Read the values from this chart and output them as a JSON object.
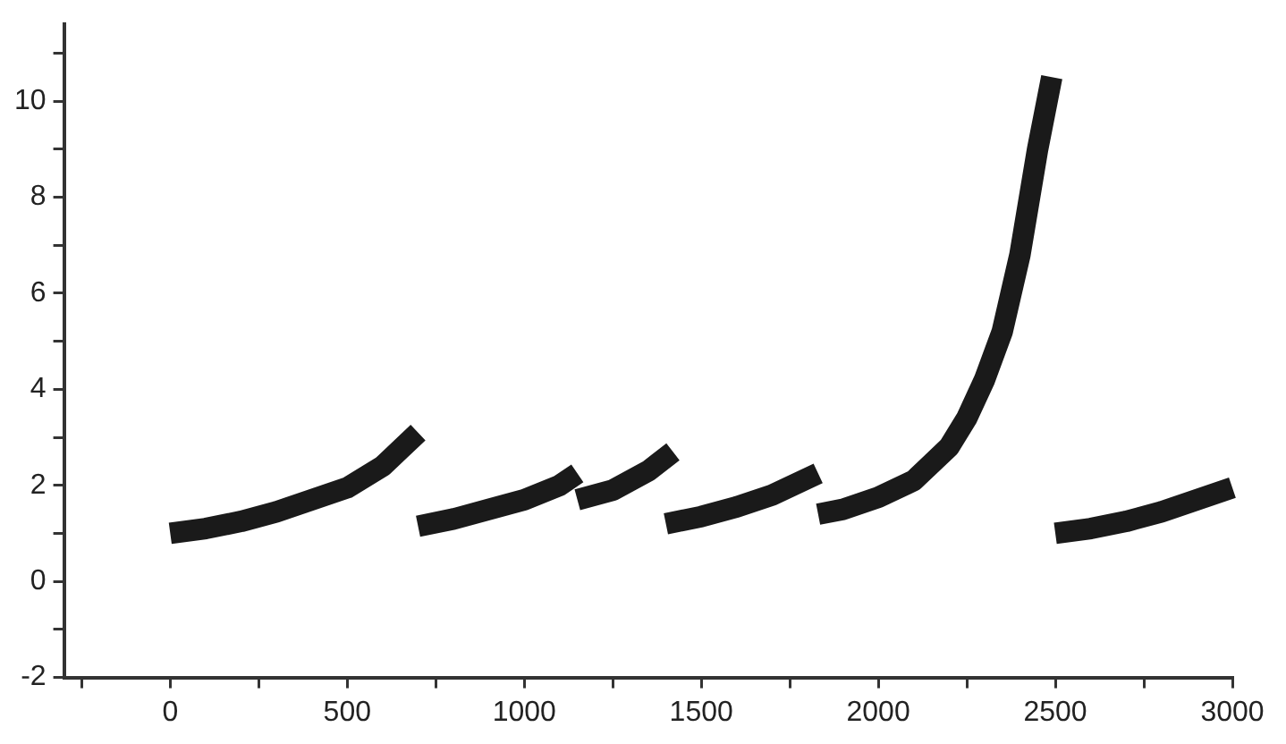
{
  "chart_data": {
    "type": "line",
    "series": [
      {
        "color": "#1a1a1a",
        "x": [
          0,
          100,
          200,
          300,
          400,
          500,
          600,
          700
        ],
        "values": [
          1.0,
          1.1,
          1.25,
          1.45,
          1.7,
          1.95,
          2.4,
          3.1
        ]
      },
      {
        "color": "#1a1a1a",
        "x": [
          700,
          800,
          900,
          1000,
          1100,
          1150
        ],
        "values": [
          1.15,
          1.3,
          1.5,
          1.7,
          2.0,
          2.25
        ]
      },
      {
        "color": "#1a1a1a",
        "x": [
          1150,
          1250,
          1350,
          1420
        ],
        "values": [
          1.7,
          1.9,
          2.3,
          2.7
        ]
      },
      {
        "color": "#1a1a1a",
        "x": [
          1400,
          1500,
          1600,
          1700,
          1830
        ],
        "values": [
          1.2,
          1.35,
          1.55,
          1.8,
          2.25
        ]
      },
      {
        "color": "#1a1a1a",
        "x": [
          1830,
          1900,
          2000,
          2100,
          2200,
          2250,
          2300,
          2350,
          2400,
          2450,
          2490
        ],
        "values": [
          1.4,
          1.5,
          1.75,
          2.1,
          2.8,
          3.4,
          4.2,
          5.2,
          6.8,
          9.0,
          10.5
        ]
      },
      {
        "color": "#1a1a1a",
        "x": [
          2500,
          2600,
          2700,
          2800,
          2900,
          3000
        ],
        "values": [
          1.0,
          1.1,
          1.25,
          1.45,
          1.7,
          1.95
        ]
      }
    ],
    "xlim": [
      -300,
      3000
    ],
    "xticks": [
      {
        "value": -250,
        "label": null
      },
      0,
      {
        "value": 250,
        "label": null
      },
      500,
      {
        "value": 750,
        "label": null
      },
      1000,
      {
        "value": 1250,
        "label": null
      },
      1500,
      {
        "value": 1750,
        "label": null
      },
      2000,
      {
        "value": 2250,
        "label": null
      },
      2500,
      {
        "value": 2750,
        "label": null
      },
      3000
    ],
    "ylim": [
      -2,
      11.6
    ],
    "yticks": [
      -2,
      {
        "value": -1,
        "label": null
      },
      0,
      {
        "value": 1,
        "label": null
      },
      2,
      {
        "value": 3,
        "label": null
      },
      4,
      {
        "value": 5,
        "label": null
      },
      6,
      {
        "value": 7,
        "label": null
      },
      8,
      {
        "value": 9,
        "label": null
      },
      10,
      {
        "value": 11,
        "label": null
      }
    ],
    "grid": false,
    "legend": false,
    "marker": "none",
    "line_style": "solid"
  }
}
